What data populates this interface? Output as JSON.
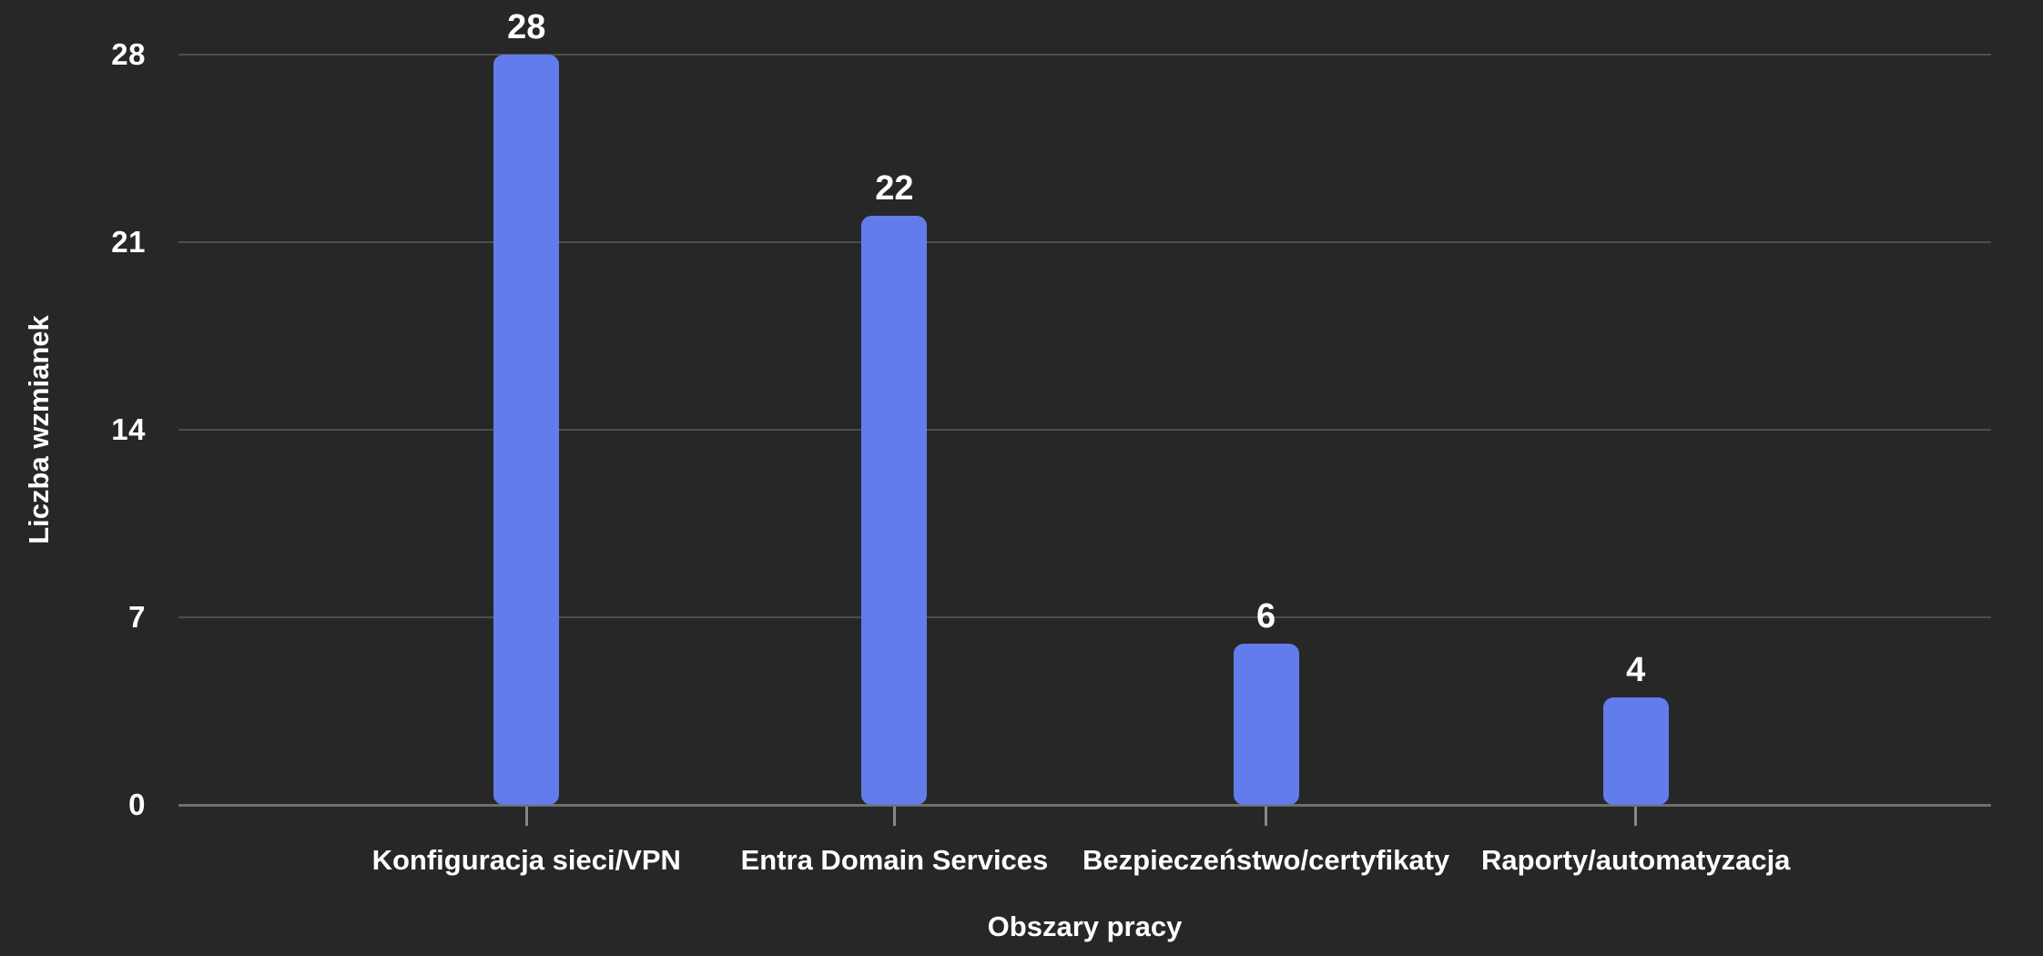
{
  "chart_data": {
    "type": "bar",
    "title": "",
    "categories": [
      "Konfiguracja sieci/VPN",
      "Entra Domain Services",
      "Bezpieczeństwo/certyfikaty",
      "Raporty/automatyzacja"
    ],
    "values": [
      28,
      22,
      6,
      4
    ],
    "xlabel": "Obszary pracy",
    "ylabel": "Liczba wzmianek",
    "ylim": [
      0,
      28
    ],
    "yticks": [
      0,
      7,
      14,
      21,
      28
    ],
    "grid": true,
    "legend": false,
    "bar_color": "#637CEB"
  },
  "colors": {
    "background": "#272727",
    "grid_line": "#4E4E4E",
    "axis_line": "#6E6E6E",
    "tick_mark": "#888888",
    "text": "#FFFFFF"
  }
}
